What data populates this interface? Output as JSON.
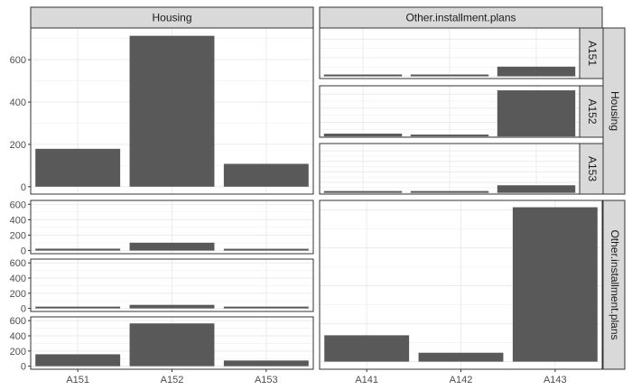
{
  "chart_data": {
    "type": "bar",
    "layout": "pairs matrix of bar charts (2 variables)",
    "variables": [
      "Housing",
      "Other.installment.plans"
    ],
    "strip_labels": {
      "top": [
        "Housing",
        "Other.installment.plans"
      ],
      "right": [
        "Housing",
        "Other.installment.plans"
      ],
      "inner_right": [
        "A151",
        "A152",
        "A153"
      ]
    },
    "x_tick_labels": {
      "left_column": [
        "A151",
        "A152",
        "A153"
      ],
      "right_column": [
        "A141",
        "A142",
        "A143"
      ]
    },
    "y_tick_labels": {
      "top_left": [
        "0",
        "200",
        "400",
        "600"
      ],
      "bottom_left_rows": [
        "0",
        "200",
        "400",
        "600"
      ]
    },
    "panels": [
      {
        "id": "housing-dist",
        "categories": [
          "A151",
          "A152",
          "A153"
        ],
        "values": [
          179,
          713,
          108
        ],
        "ylim": [
          -35,
          750
        ]
      },
      {
        "id": "other-plans-by-housing-A151",
        "categories": [
          "A141",
          "A142",
          "A143"
        ],
        "values": [
          6,
          0,
          52
        ],
        "ylim": [
          -12,
          260
        ]
      },
      {
        "id": "other-plans-by-housing-A152",
        "categories": [
          "A141",
          "A142",
          "A143"
        ],
        "values": [
          39,
          10,
          655
        ],
        "ylim": [
          -12,
          720
        ]
      },
      {
        "id": "other-plans-by-housing-A153",
        "categories": [
          "A141",
          "A142",
          "A143"
        ],
        "values": [
          6,
          0,
          72
        ],
        "ylim": [
          -12,
          470
        ]
      },
      {
        "id": "housing-by-other-plans-A141",
        "categories": [
          "A151",
          "A152",
          "A153"
        ],
        "values": [
          25,
          102,
          12
        ],
        "ylim": [
          -40,
          650
        ]
      },
      {
        "id": "housing-by-other-plans-A142",
        "categories": [
          "A151",
          "A152",
          "A153"
        ],
        "values": [
          0,
          47,
          0
        ],
        "ylim": [
          -40,
          650
        ]
      },
      {
        "id": "housing-by-other-plans-A143",
        "categories": [
          "A151",
          "A152",
          "A153"
        ],
        "values": [
          157,
          564,
          75
        ],
        "ylim": [
          -40,
          650
        ]
      },
      {
        "id": "other-plans-dist",
        "categories": [
          "A141",
          "A142",
          "A143"
        ],
        "values": [
          139,
          47,
          814
        ],
        "ylim": [
          -40,
          850
        ]
      }
    ],
    "grid": true,
    "legend": "none",
    "colors": {
      "bar": "#595959",
      "strip_fill": "#d9d9d9",
      "panel_border": "#333333",
      "grid": "#ebebeb",
      "tick_text": "#4d4d4d"
    }
  }
}
